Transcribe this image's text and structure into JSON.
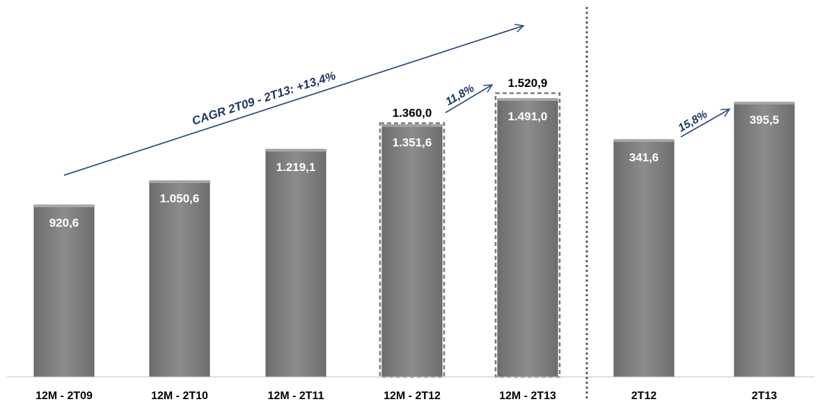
{
  "chart_data": {
    "type": "bar",
    "categories": [
      "12M - 2T09",
      "12M - 2T10",
      "12M - 2T11",
      "12M - 2T12",
      "12M - 2T13",
      "2T12",
      "2T13"
    ],
    "values": [
      920.6,
      1050.6,
      1219.1,
      1351.6,
      1491.0,
      341.6,
      395.5
    ],
    "value_labels": [
      "920,6",
      "1.050,6",
      "1.219,1",
      "1.351,6",
      "1.491,0",
      "341,6",
      "395,5"
    ],
    "dashed_totals": [
      null,
      null,
      null,
      1360.0,
      1520.9,
      null,
      null
    ],
    "dashed_total_labels": [
      "",
      "",
      "",
      "1.360,0",
      "1.520,9",
      "",
      ""
    ],
    "annotations": {
      "cagr": "CAGR 2T09 - 2T13: +13,4%",
      "growth_12m": "11,8%",
      "growth_quarter": "15,8%"
    },
    "separator_after_index": 4,
    "colors": {
      "bar": "#8a8a8a",
      "arrow": "#2f4f7f",
      "annotation": "#1f3864"
    },
    "grid": false
  }
}
